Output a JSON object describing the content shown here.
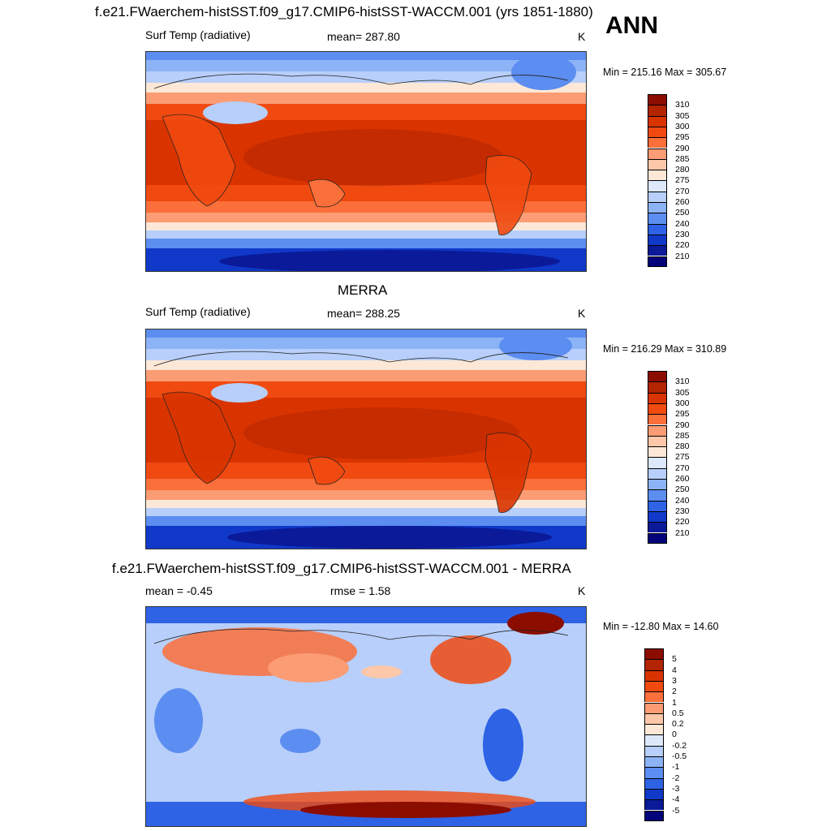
{
  "header": {
    "title": "f.e21.FWaerchem-histSST.f09_g17.CMIP6-histSST-WACCM.001 (yrs 1851-1880)",
    "season": "ANN"
  },
  "panels": [
    {
      "title": "",
      "variable": "Surf Temp (radiative)",
      "stat_text": "mean= 287.80",
      "units": "K",
      "minmax": "Min = 215.16 Max = 305.67",
      "colorbar": {
        "labels": [
          "310",
          "305",
          "300",
          "295",
          "290",
          "285",
          "280",
          "275",
          "270",
          "260",
          "250",
          "240",
          "230",
          "220",
          "210"
        ],
        "colors": [
          "#8b0d00",
          "#b32400",
          "#d93400",
          "#f04a10",
          "#fb6f3a",
          "#fc9c74",
          "#fdc8a9",
          "#fde8d7",
          "#dde9fb",
          "#b7cffa",
          "#8db3f7",
          "#5c8df0",
          "#2e63e6",
          "#1039c9",
          "#0a1a99",
          "#04047a"
        ]
      }
    },
    {
      "title": "MERRA",
      "variable": "Surf Temp (radiative)",
      "stat_text": "mean= 288.25",
      "units": "K",
      "minmax": "Min = 216.29 Max = 310.89",
      "colorbar": {
        "labels": [
          "310",
          "305",
          "300",
          "295",
          "290",
          "285",
          "280",
          "275",
          "270",
          "260",
          "250",
          "240",
          "230",
          "220",
          "210"
        ],
        "colors": [
          "#8b0d00",
          "#b32400",
          "#d93400",
          "#f04a10",
          "#fb6f3a",
          "#fc9c74",
          "#fdc8a9",
          "#fde8d7",
          "#dde9fb",
          "#b7cffa",
          "#8db3f7",
          "#5c8df0",
          "#2e63e6",
          "#1039c9",
          "#0a1a99",
          "#04047a"
        ]
      }
    },
    {
      "title": "f.e21.FWaerchem-histSST.f09_g17.CMIP6-histSST-WACCM.001 - MERRA",
      "variable": "mean =  -0.45",
      "stat_text": "rmse =   1.58",
      "units": "K",
      "minmax": "Min = -12.80 Max =  14.60",
      "colorbar": {
        "labels": [
          "5",
          "4",
          "3",
          "2",
          "1",
          "0.5",
          "0.2",
          "0",
          "-0.2",
          "-0.5",
          "-1",
          "-2",
          "-3",
          "-4",
          "-5"
        ],
        "colors": [
          "#8b0d00",
          "#b32400",
          "#d93400",
          "#f04a10",
          "#fb6f3a",
          "#fc9c74",
          "#fdc8a9",
          "#fde8d7",
          "#dde9fb",
          "#b7cffa",
          "#8db3f7",
          "#5c8df0",
          "#2e63e6",
          "#1039c9",
          "#0a1a99",
          "#04047a"
        ]
      }
    }
  ]
}
